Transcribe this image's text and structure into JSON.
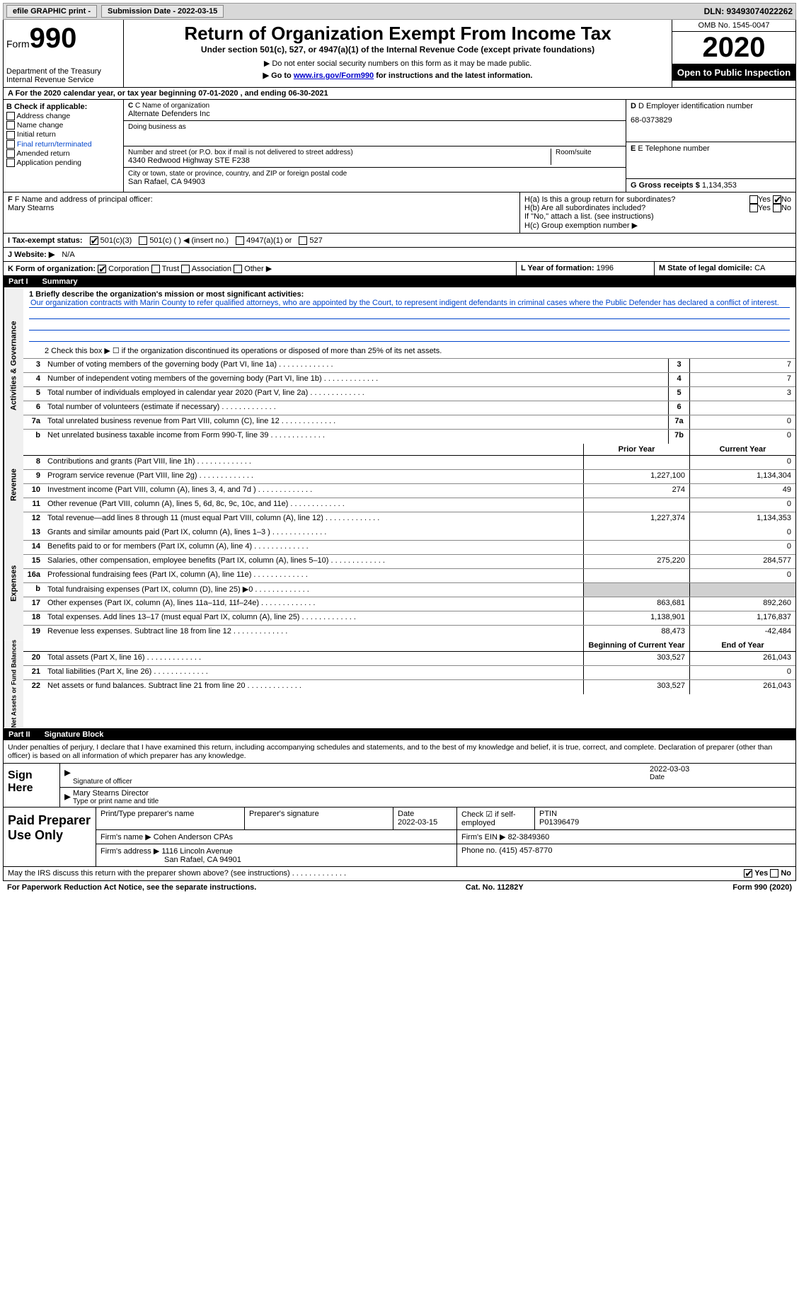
{
  "topbar": {
    "efile": "efile GRAPHIC print -",
    "submission": "Submission Date - 2022-03-15",
    "dln": "DLN: 93493074022262"
  },
  "header": {
    "form_prefix": "Form",
    "form_num": "990",
    "dept": "Department of the Treasury\nInternal Revenue Service",
    "title": "Return of Organization Exempt From Income Tax",
    "subtitle": "Under section 501(c), 527, or 4947(a)(1) of the Internal Revenue Code (except private foundations)",
    "note1": "▶ Do not enter social security numbers on this form as it may be made public.",
    "note2_pre": "▶ Go to ",
    "note2_link": "www.irs.gov/Form990",
    "note2_post": " for instructions and the latest information.",
    "omb": "OMB No. 1545-0047",
    "year": "2020",
    "open": "Open to Public Inspection"
  },
  "row_a": "A For the 2020 calendar year, or tax year beginning 07-01-2020   , and ending 06-30-2021",
  "col_b": {
    "hdr": "B Check if applicable:",
    "items": [
      "Address change",
      "Name change",
      "Initial return",
      "Final return/terminated",
      "Amended return",
      "Application pending"
    ]
  },
  "col_c": {
    "name_lbl": "C Name of organization",
    "name": "Alternate Defenders Inc",
    "dba_lbl": "Doing business as",
    "dba": "",
    "addr_lbl": "Number and street (or P.O. box if mail is not delivered to street address)",
    "addr": "4340 Redwood Highway STE F238",
    "room_lbl": "Room/suite",
    "city_lbl": "City or town, state or province, country, and ZIP or foreign postal code",
    "city": "San Rafael, CA  94903"
  },
  "col_de": {
    "ein_lbl": "D Employer identification number",
    "ein": "68-0373829",
    "tel_lbl": "E Telephone number",
    "tel": "",
    "gross_lbl": "G Gross receipts $",
    "gross": "1,134,353"
  },
  "section_f": {
    "lbl": "F Name and address of principal officer:",
    "name": "Mary Stearns"
  },
  "section_h": {
    "ha": "H(a)  Is this a group return for subordinates?",
    "hb": "H(b)  Are all subordinates included?",
    "hb_note": "If \"No,\" attach a list. (see instructions)",
    "hc": "H(c)  Group exemption number ▶",
    "yes": "Yes",
    "no": "No"
  },
  "row_i": {
    "lbl": "I   Tax-exempt status:",
    "opts": [
      "501(c)(3)",
      "501(c) (  ) ◀ (insert no.)",
      "4947(a)(1) or",
      "527"
    ]
  },
  "row_j": {
    "lbl": "J   Website: ▶",
    "val": "N/A"
  },
  "row_k": {
    "lbl": "K Form of organization:",
    "opts": [
      "Corporation",
      "Trust",
      "Association",
      "Other ▶"
    ],
    "year_lbl": "L Year of formation:",
    "year": "1996",
    "state_lbl": "M State of legal domicile:",
    "state": "CA"
  },
  "part1": {
    "num": "Part I",
    "title": "Summary"
  },
  "mission": {
    "lbl": "1    Briefly describe the organization's mission or most significant activities:",
    "text": "Our organization contracts with Marin County to refer qualified attorneys, who are appointed by the Court, to represent indigent defendants in criminal cases where the Public Defender has declared a conflict of interest."
  },
  "line2": "2    Check this box ▶ ☐  if the organization discontinued its operations or disposed of more than 25% of its net assets.",
  "governance": {
    "tab": "Activities & Governance",
    "rows": [
      {
        "n": "3",
        "lbl": "Number of voting members of the governing body (Part VI, line 1a)",
        "box": "3",
        "val": "7"
      },
      {
        "n": "4",
        "lbl": "Number of independent voting members of the governing body (Part VI, line 1b)",
        "box": "4",
        "val": "7"
      },
      {
        "n": "5",
        "lbl": "Total number of individuals employed in calendar year 2020 (Part V, line 2a)",
        "box": "5",
        "val": "3"
      },
      {
        "n": "6",
        "lbl": "Total number of volunteers (estimate if necessary)",
        "box": "6",
        "val": ""
      },
      {
        "n": "7a",
        "lbl": "Total unrelated business revenue from Part VIII, column (C), line 12",
        "box": "7a",
        "val": "0"
      },
      {
        "n": "b",
        "lbl": "Net unrelated business taxable income from Form 990-T, line 39",
        "box": "7b",
        "val": "0"
      }
    ]
  },
  "cols": {
    "prior": "Prior Year",
    "current": "Current Year"
  },
  "revenue": {
    "tab": "Revenue",
    "rows": [
      {
        "n": "8",
        "lbl": "Contributions and grants (Part VIII, line 1h)",
        "p": "",
        "c": "0"
      },
      {
        "n": "9",
        "lbl": "Program service revenue (Part VIII, line 2g)",
        "p": "1,227,100",
        "c": "1,134,304"
      },
      {
        "n": "10",
        "lbl": "Investment income (Part VIII, column (A), lines 3, 4, and 7d )",
        "p": "274",
        "c": "49"
      },
      {
        "n": "11",
        "lbl": "Other revenue (Part VIII, column (A), lines 5, 6d, 8c, 9c, 10c, and 11e)",
        "p": "",
        "c": "0"
      },
      {
        "n": "12",
        "lbl": "Total revenue—add lines 8 through 11 (must equal Part VIII, column (A), line 12)",
        "p": "1,227,374",
        "c": "1,134,353"
      }
    ]
  },
  "expenses": {
    "tab": "Expenses",
    "rows": [
      {
        "n": "13",
        "lbl": "Grants and similar amounts paid (Part IX, column (A), lines 1–3 )",
        "p": "",
        "c": "0"
      },
      {
        "n": "14",
        "lbl": "Benefits paid to or for members (Part IX, column (A), line 4)",
        "p": "",
        "c": "0"
      },
      {
        "n": "15",
        "lbl": "Salaries, other compensation, employee benefits (Part IX, column (A), lines 5–10)",
        "p": "275,220",
        "c": "284,577"
      },
      {
        "n": "16a",
        "lbl": "Professional fundraising fees (Part IX, column (A), line 11e)",
        "p": "",
        "c": "0"
      },
      {
        "n": "b",
        "lbl": "Total fundraising expenses (Part IX, column (D), line 25) ▶0",
        "p": "shade",
        "c": "shade"
      },
      {
        "n": "17",
        "lbl": "Other expenses (Part IX, column (A), lines 11a–11d, 11f–24e)",
        "p": "863,681",
        "c": "892,260"
      },
      {
        "n": "18",
        "lbl": "Total expenses. Add lines 13–17 (must equal Part IX, column (A), line 25)",
        "p": "1,138,901",
        "c": "1,176,837"
      },
      {
        "n": "19",
        "lbl": "Revenue less expenses. Subtract line 18 from line 12",
        "p": "88,473",
        "c": "-42,484"
      }
    ]
  },
  "cols2": {
    "begin": "Beginning of Current Year",
    "end": "End of Year"
  },
  "netassets": {
    "tab": "Net Assets or Fund Balances",
    "rows": [
      {
        "n": "20",
        "lbl": "Total assets (Part X, line 16)",
        "p": "303,527",
        "c": "261,043"
      },
      {
        "n": "21",
        "lbl": "Total liabilities (Part X, line 26)",
        "p": "",
        "c": "0"
      },
      {
        "n": "22",
        "lbl": "Net assets or fund balances. Subtract line 21 from line 20",
        "p": "303,527",
        "c": "261,043"
      }
    ]
  },
  "part2": {
    "num": "Part II",
    "title": "Signature Block"
  },
  "sig": {
    "decl": "Under penalties of perjury, I declare that I have examined this return, including accompanying schedules and statements, and to the best of my knowledge and belief, it is true, correct, and complete. Declaration of preparer (other than officer) is based on all information of which preparer has any knowledge.",
    "sign_here": "Sign Here",
    "sig_lbl": "Signature of officer",
    "date_lbl": "Date",
    "date": "2022-03-03",
    "name": "Mary Stearns  Director",
    "name_lbl": "Type or print name and title"
  },
  "paid": {
    "lbl": "Paid Preparer Use Only",
    "r1": {
      "c1": "Print/Type preparer's name",
      "c2": "Preparer's signature",
      "c3": "Date",
      "c3v": "2022-03-15",
      "c4": "Check ☑ if self-employed",
      "c5": "PTIN",
      "c5v": "P01396479"
    },
    "r2": {
      "c1": "Firm's name    ▶",
      "c1v": "Cohen Anderson CPAs",
      "c2": "Firm's EIN ▶",
      "c2v": "82-3849360"
    },
    "r3": {
      "c1": "Firm's address ▶",
      "c1v": "1116 Lincoln Avenue",
      "c1v2": "San Rafael, CA  94901",
      "c2": "Phone no.",
      "c2v": "(415) 457-8770"
    }
  },
  "discuss": "May the IRS discuss this return with the preparer shown above? (see instructions)",
  "footer": {
    "left": "For Paperwork Reduction Act Notice, see the separate instructions.",
    "mid": "Cat. No. 11282Y",
    "right": "Form 990 (2020)"
  }
}
